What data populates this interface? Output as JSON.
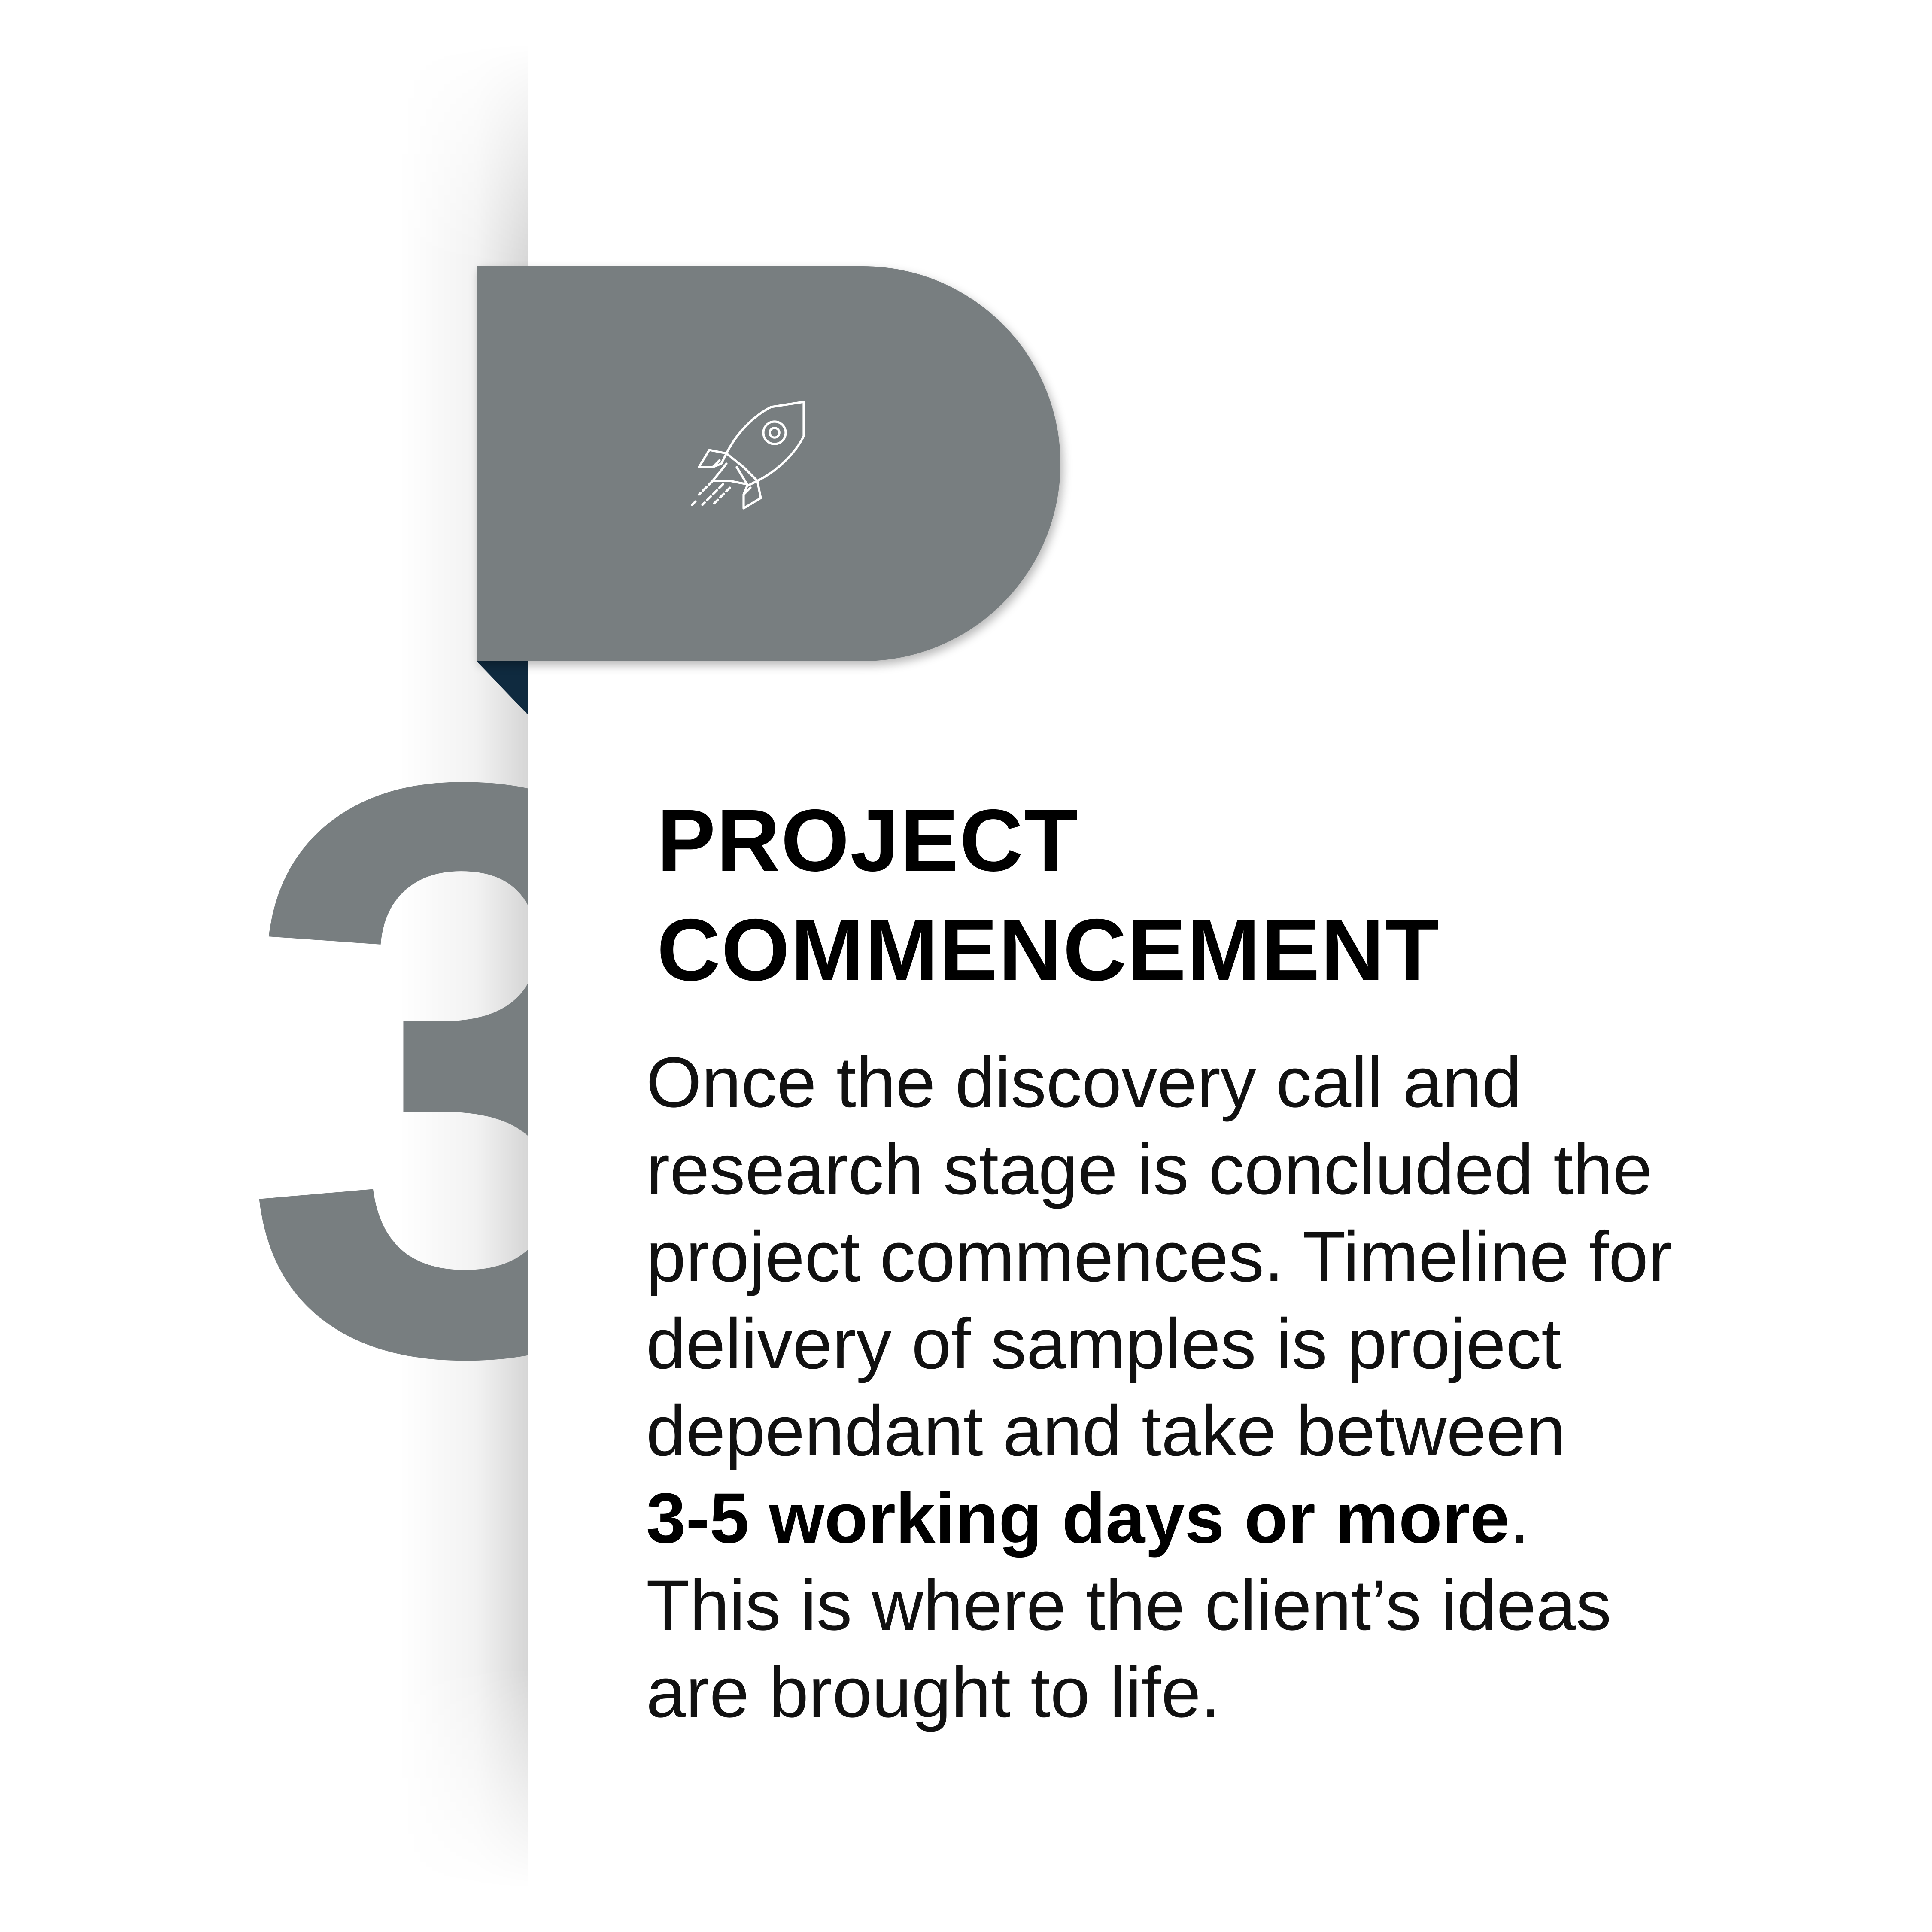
{
  "step": {
    "number": "3",
    "icon": "rocket-icon"
  },
  "heading": {
    "line1": "PROJECT",
    "line2": "COMMENCEMENT"
  },
  "description": {
    "line1": "Once the discovery call and",
    "line2": "research stage is concluded the",
    "line3": "project commences. Timeline for",
    "line4": "delivery of samples is project",
    "line5": "dependant and take between",
    "line6_bold": "3-5 working days or more",
    "line6_end": ".",
    "line7": "This is where the client’s ideas",
    "line8": "are brought to life."
  },
  "colors": {
    "accent_gray": "#787e80",
    "fold_navy": "#0f2a3f",
    "text": "#000000",
    "background": "#ffffff"
  }
}
